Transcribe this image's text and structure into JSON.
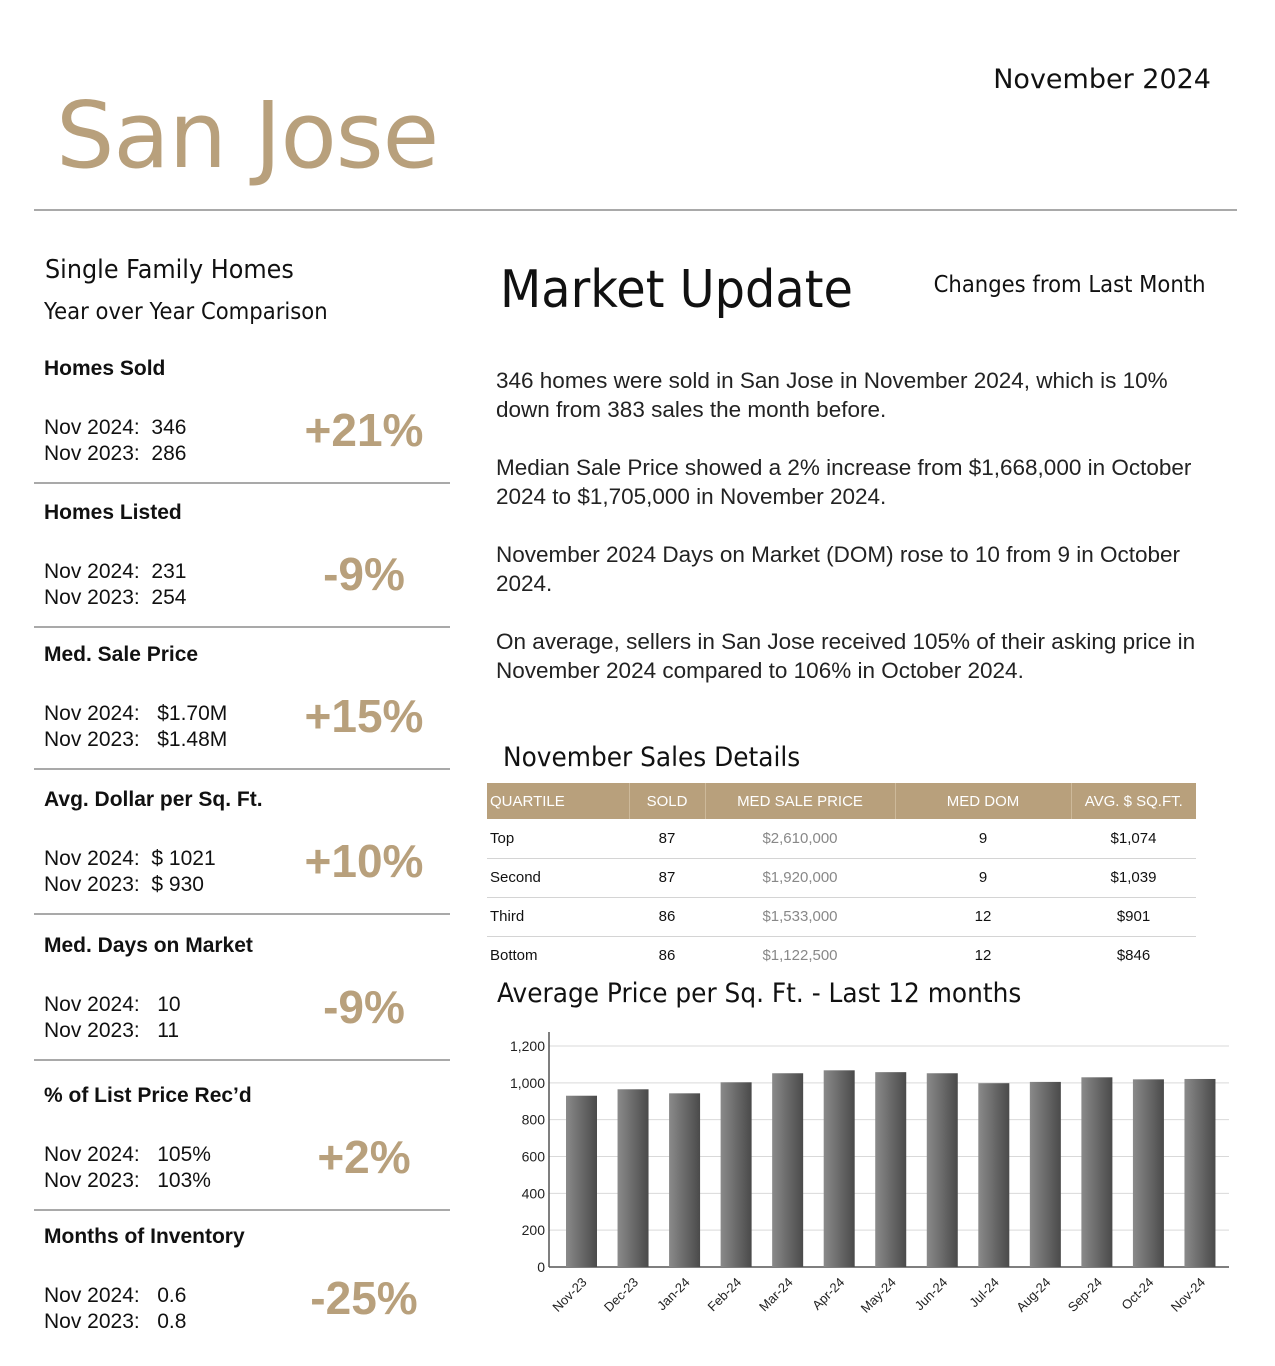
{
  "header": {
    "date": "November 2024",
    "city": "San Jose"
  },
  "left": {
    "title": "Single Family Homes",
    "subtitle": "Year over Year Comparison",
    "metrics": [
      {
        "label": "Homes Sold",
        "line1": "Nov 2024:  346",
        "line2": "Nov 2023:  286",
        "pct": "+21%"
      },
      {
        "label": "Homes Listed",
        "line1": "Nov 2024:  231",
        "line2": "Nov 2023:  254",
        "pct": "-9%"
      },
      {
        "label": "Med. Sale Price",
        "line1": "Nov 2024:   $1.70M",
        "line2": "Nov 2023:   $1.48M",
        "pct": "+15%"
      },
      {
        "label": "Avg. Dollar per Sq. Ft.",
        "line1": "Nov 2024:  $ 1021",
        "line2": "Nov 2023:  $ 930",
        "pct": "+10%"
      },
      {
        "label": "Med. Days on Market",
        "line1": "Nov 2024:   10",
        "line2": "Nov 2023:   11",
        "pct": "-9%"
      },
      {
        "label": "% of List Price Rec’d",
        "line1": "Nov 2024:   105%",
        "line2": "Nov 2023:   103%",
        "pct": "+2%"
      },
      {
        "label": "Months of Inventory",
        "line1": "Nov 2024:   0.6",
        "line2": "Nov 2023:   0.8",
        "pct": "-25%"
      }
    ]
  },
  "market_update": {
    "title": "Market Update",
    "changes_label": "Changes from Last Month",
    "paragraphs": [
      "346 homes were sold in San Jose in November 2024, which is 10% down from 383 sales the month before.",
      "Median Sale Price showed a 2% increase from $1,668,000 in October 2024 to $1,705,000 in November 2024.",
      "November 2024 Days on Market (DOM) rose to 10 from 9 in October 2024.",
      "On average, sellers in San Jose received 105% of their asking price in November 2024 compared to 106% in October 2024."
    ]
  },
  "sales_details": {
    "title": "November Sales Details",
    "headers": [
      "QUARTILE",
      "SOLD",
      "MED SALE PRICE",
      "MED DOM",
      "AVG. $ SQ.FT."
    ],
    "rows": [
      [
        "Top",
        "87",
        "$2,610,000",
        "9",
        "$1,074"
      ],
      [
        "Second",
        "87",
        "$1,920,000",
        "9",
        "$1,039"
      ],
      [
        "Third",
        "86",
        "$1,533,000",
        "12",
        "$901"
      ],
      [
        "Bottom",
        "86",
        "$1,122,500",
        "12",
        "$846"
      ]
    ]
  },
  "colors": {
    "accent": "#b8a07c",
    "bar": "#6a6a6a"
  },
  "chart_data": {
    "type": "bar",
    "title": "Average Price per Sq. Ft. - Last 12 months",
    "categories": [
      "Nov-23",
      "Dec-23",
      "Jan-24",
      "Feb-24",
      "Mar-24",
      "Apr-24",
      "May-24",
      "Jun-24",
      "Jul-24",
      "Aug-24",
      "Sep-24",
      "Oct-24",
      "Nov-24"
    ],
    "values": [
      930,
      965,
      943,
      1003,
      1052,
      1068,
      1058,
      1052,
      998,
      1005,
      1030,
      1019,
      1021
    ],
    "ylim": [
      0,
      1200
    ],
    "yticks": [
      "0",
      "200",
      "400",
      "600",
      "800",
      "1,000",
      "1,200"
    ],
    "grid": true
  }
}
